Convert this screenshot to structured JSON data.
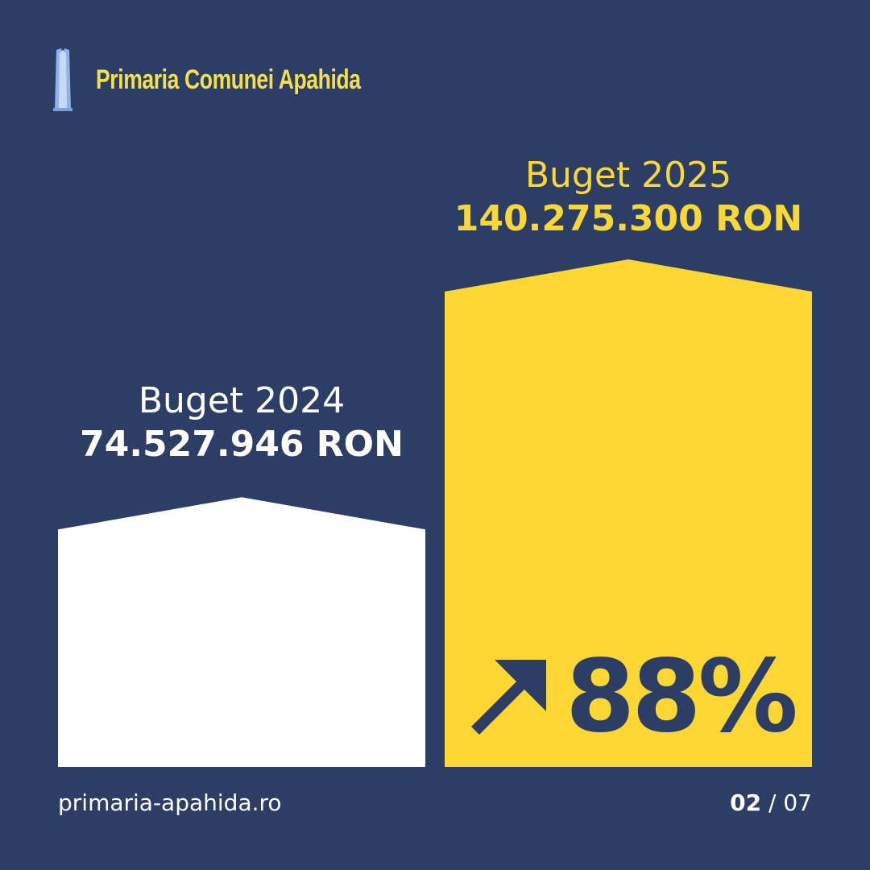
{
  "header": {
    "brand": "Primaria Comunei Apahida",
    "logo_icon": "monument-logo-icon"
  },
  "chart_data": {
    "type": "bar",
    "categories": [
      "Buget 2024",
      "Buget 2025"
    ],
    "values": [
      74527946,
      140275300
    ],
    "value_labels": [
      "74.527.946 RON",
      "140.275.300 RON"
    ],
    "unit": "RON",
    "colors": [
      "#ffffff",
      "#fcd733"
    ],
    "annotation": {
      "icon": "arrow-up-right-icon",
      "text": "88%"
    }
  },
  "footer": {
    "url": "primaria-apahida.ro",
    "page_current": "02",
    "page_separator": " / ",
    "page_total": "07"
  },
  "theme": {
    "background": "#2c3e66",
    "accent": "#fcd733",
    "brand_text": "#f4e04d"
  }
}
